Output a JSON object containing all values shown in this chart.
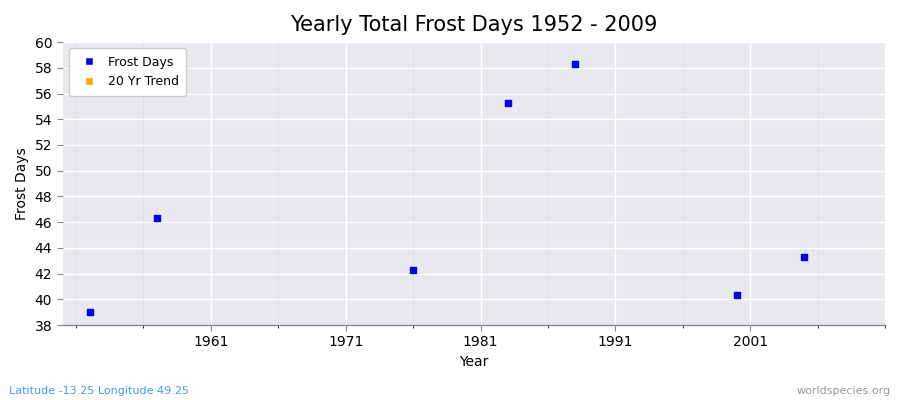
{
  "title": "Yearly Total Frost Days 1952 - 2009",
  "xlabel": "Year",
  "ylabel": "Frost Days",
  "x_data": [
    1952,
    1957,
    1976,
    1983,
    1988,
    2000,
    2005
  ],
  "y_data": [
    39.0,
    46.3,
    42.3,
    55.3,
    58.3,
    40.3,
    43.3
  ],
  "scatter_color": "#0000ee",
  "marker": "s",
  "marker_size": 20,
  "xlim": [
    1950,
    2011
  ],
  "ylim": [
    38,
    60
  ],
  "yticks": [
    38,
    40,
    42,
    44,
    46,
    48,
    50,
    52,
    54,
    56,
    58,
    60
  ],
  "xticks": [
    1961,
    1971,
    1981,
    1991,
    2001
  ],
  "background_color": "#e8e8ee",
  "grid_major_color": "#ffffff",
  "grid_minor_color": "#d8d8e4",
  "title_fontsize": 15,
  "axis_fontsize": 10,
  "tick_fontsize": 10,
  "legend_labels": [
    "Frost Days",
    "20 Yr Trend"
  ],
  "legend_colors": [
    "#0000ee",
    "#ffa500"
  ],
  "footer_left": "Latitude -13.25 Longitude 49.25",
  "footer_right": "worldspecies.org"
}
